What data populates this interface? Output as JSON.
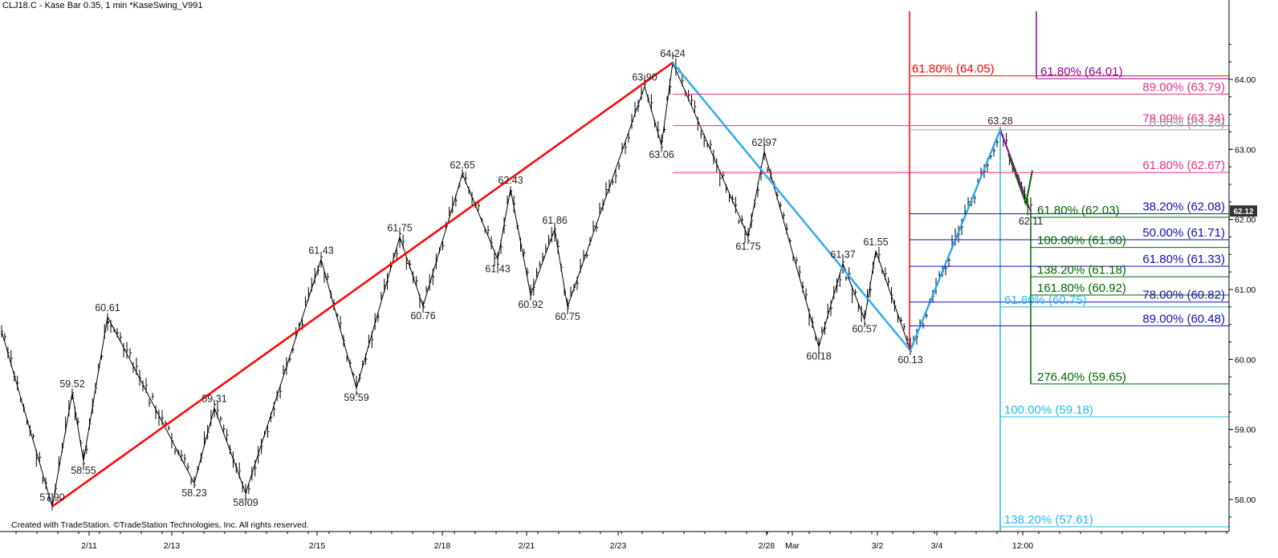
{
  "header": {
    "title": "CLJ18.C - Kase Bar 0.35, 1 min  *KaseSwing_V991"
  },
  "footer": {
    "credit": "Created with TradeStation. ©TradeStation Technologies, Inc. All rights reserved."
  },
  "chart_data": {
    "type": "line",
    "x_labels": [
      "2/11",
      "2/13",
      "2/15",
      "2/18",
      "2/21",
      "2/23",
      "2/28",
      "Mar",
      "3/2",
      "3/4",
      "12:00"
    ],
    "y_ticks": [
      "64.00",
      "63.00",
      "62.00",
      "61.00",
      "60.00",
      "59.00",
      "58.00"
    ],
    "ylim": [
      57.5,
      65.0
    ],
    "last_price": "62.12",
    "swing_points": [
      {
        "label": "57.90",
        "value": 57.9
      },
      {
        "label": "59.52",
        "value": 59.52
      },
      {
        "label": "58.55",
        "value": 58.55
      },
      {
        "label": "60.61",
        "value": 60.61
      },
      {
        "label": "58.23",
        "value": 58.23
      },
      {
        "label": "59.31",
        "value": 59.31
      },
      {
        "label": "58.09",
        "value": 58.09
      },
      {
        "label": "61.43",
        "value": 61.43
      },
      {
        "label": "59.59",
        "value": 59.59
      },
      {
        "label": "61.75",
        "value": 61.75
      },
      {
        "label": "60.76",
        "value": 60.76
      },
      {
        "label": "62.65",
        "value": 62.65
      },
      {
        "label": "61.43",
        "value": 61.43
      },
      {
        "label": "62.43",
        "value": 62.43
      },
      {
        "label": "60.92",
        "value": 60.92
      },
      {
        "label": "61.86",
        "value": 61.86
      },
      {
        "label": "60.75",
        "value": 60.75
      },
      {
        "label": "63.90",
        "value": 63.9
      },
      {
        "label": "63.06",
        "value": 63.06
      },
      {
        "label": "64.24",
        "value": 64.24
      },
      {
        "label": "61.75",
        "value": 61.75
      },
      {
        "label": "62.97",
        "value": 62.97
      },
      {
        "label": "60.18",
        "value": 60.18
      },
      {
        "label": "61.37",
        "value": 61.37
      },
      {
        "label": "60.57",
        "value": 60.57
      },
      {
        "label": "61.55",
        "value": 61.55
      },
      {
        "label": "60.13",
        "value": 60.13
      },
      {
        "label": "63.28",
        "value": 63.28
      },
      {
        "label": "62.11",
        "value": 62.11
      }
    ],
    "fib_levels": [
      {
        "label": "61.80% (64.05)",
        "value": 64.05,
        "color": "#ff0000",
        "group": "red"
      },
      {
        "label": "61.80% (64.01)",
        "value": 64.01,
        "color": "#990099",
        "group": "purple"
      },
      {
        "label": "89.00% (63.79)",
        "value": 63.79,
        "color": "#ee2a8c",
        "group": "pink"
      },
      {
        "label": "78.00% (63.34)",
        "value": 63.34,
        "color": "#ee2a8c",
        "group": "pink"
      },
      {
        "label": "0.00% (63.28)",
        "value": 63.28,
        "color": "#a0a0a0",
        "group": "gray"
      },
      {
        "label": "61.80% (62.67)",
        "value": 62.67,
        "color": "#ee2a8c",
        "group": "pink"
      },
      {
        "label": "38.20% (62.08)",
        "value": 62.08,
        "color": "#1010b0",
        "group": "blue"
      },
      {
        "label": "61.80% (62.03)",
        "value": 62.03,
        "color": "#006600",
        "group": "green"
      },
      {
        "label": "50.00% (61.71)",
        "value": 61.71,
        "color": "#1010b0",
        "group": "blue"
      },
      {
        "label": "100.00% (61.60)",
        "value": 61.6,
        "color": "#006600",
        "group": "green"
      },
      {
        "label": "61.80% (61.33)",
        "value": 61.33,
        "color": "#1010b0",
        "group": "blue"
      },
      {
        "label": "138.20% (61.18)",
        "value": 61.18,
        "color": "#006600",
        "group": "green"
      },
      {
        "label": "161.80% (60.92)",
        "value": 60.92,
        "color": "#006600",
        "group": "green"
      },
      {
        "label": "78.00% (60.82)",
        "value": 60.82,
        "color": "#1010b0",
        "group": "blue"
      },
      {
        "label": "61.80% (60.75)",
        "value": 60.75,
        "color": "#22bbee",
        "group": "cyan"
      },
      {
        "label": "89.00% (60.48)",
        "value": 60.48,
        "color": "#1010b0",
        "group": "blue"
      },
      {
        "label": "276.40% (59.65)",
        "value": 59.65,
        "color": "#006600",
        "group": "green"
      },
      {
        "label": "100.00% (59.18)",
        "value": 59.18,
        "color": "#22bbee",
        "group": "cyan"
      },
      {
        "label": "138.20% (57.61)",
        "value": 57.61,
        "color": "#22bbee",
        "group": "cyan"
      }
    ],
    "colors": {
      "price": "#000000",
      "swing_up": "#ff0000",
      "swing_down": "#33aaee",
      "badge": "#333333"
    }
  }
}
